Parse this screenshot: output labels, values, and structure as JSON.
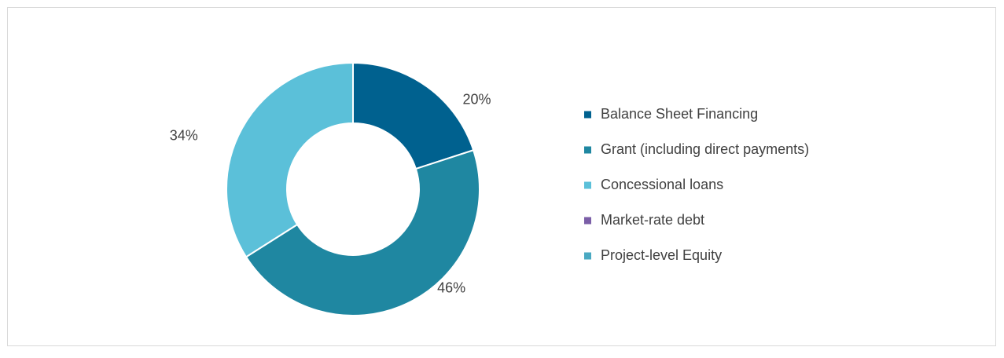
{
  "chart_data": {
    "type": "donut",
    "categories": [
      "Balance Sheet Financing",
      "Grant (including direct payments)",
      "Concessional loans",
      "Market-rate debt",
      "Project-level Equity"
    ],
    "values": [
      20,
      46,
      34,
      0,
      0
    ],
    "value_labels": [
      "20%",
      "46%",
      "34%",
      null,
      null
    ],
    "colors": [
      "#00618f",
      "#1f87a1",
      "#5bc0d9",
      "#7b5ea7",
      "#4aa9c2"
    ],
    "legend": "right"
  }
}
